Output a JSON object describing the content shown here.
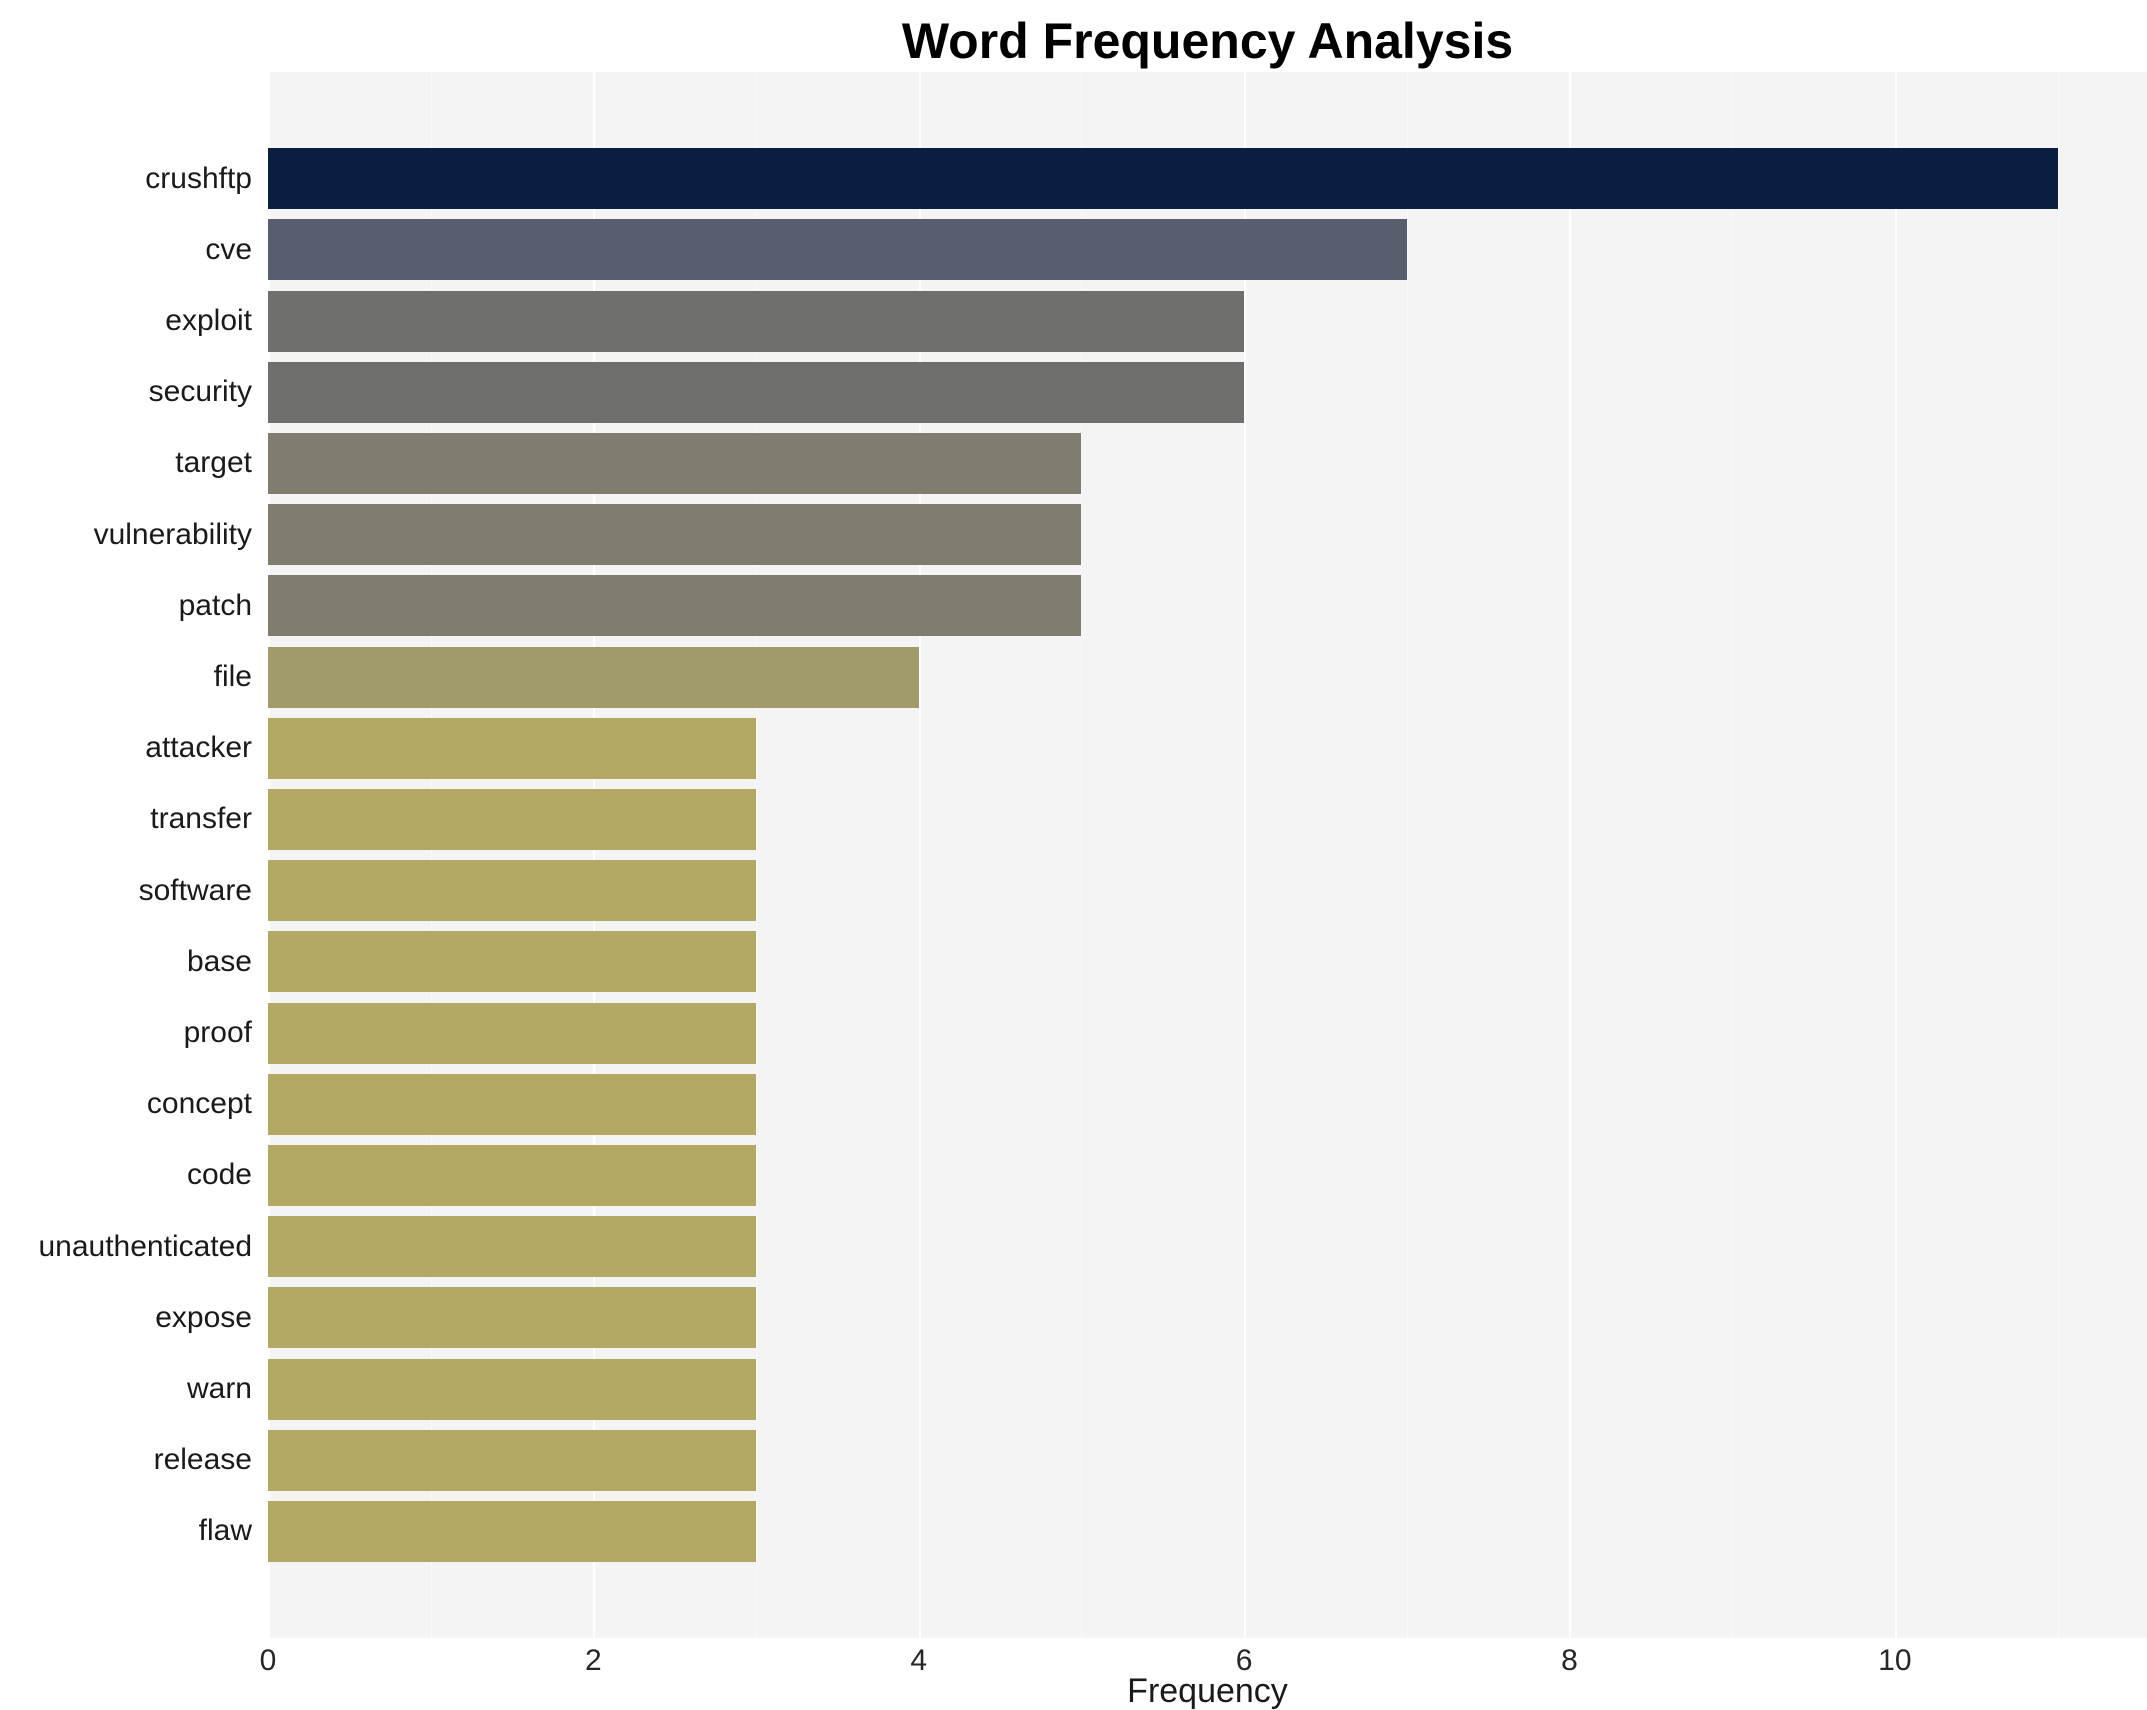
{
  "chart_data": {
    "type": "bar",
    "orientation": "horizontal",
    "title": "Word Frequency Analysis",
    "xlabel": "Frequency",
    "ylabel": "",
    "xlim": [
      0,
      11.55
    ],
    "x_ticks": [
      0,
      2,
      4,
      6,
      8,
      10
    ],
    "x_minor_ticks": [
      1,
      3,
      5,
      7,
      9,
      11
    ],
    "grid": true,
    "legend": "none",
    "plot_bg": "#f4f4f5",
    "grid_color": "#ffffff",
    "categories": [
      "crushftp",
      "cve",
      "exploit",
      "security",
      "target",
      "vulnerability",
      "patch",
      "file",
      "attacker",
      "transfer",
      "software",
      "base",
      "proof",
      "concept",
      "code",
      "unauthenticated",
      "expose",
      "warn",
      "release",
      "flaw"
    ],
    "values": [
      11,
      7,
      6,
      6,
      5,
      5,
      5,
      4,
      3,
      3,
      3,
      3,
      3,
      3,
      3,
      3,
      3,
      3,
      3,
      3
    ],
    "colors": [
      "#0a1e3f",
      "#575f6e",
      "#6e6e6d",
      "#6e6e6d",
      "#807c6f",
      "#807c6f",
      "#807c6f",
      "#a19b6c",
      "#b3a964",
      "#b3a964",
      "#b3a964",
      "#b3a964",
      "#b3a964",
      "#b3a964",
      "#b3a964",
      "#b3a964",
      "#b3a964",
      "#b3a964",
      "#b3a964",
      "#b3a964"
    ]
  }
}
